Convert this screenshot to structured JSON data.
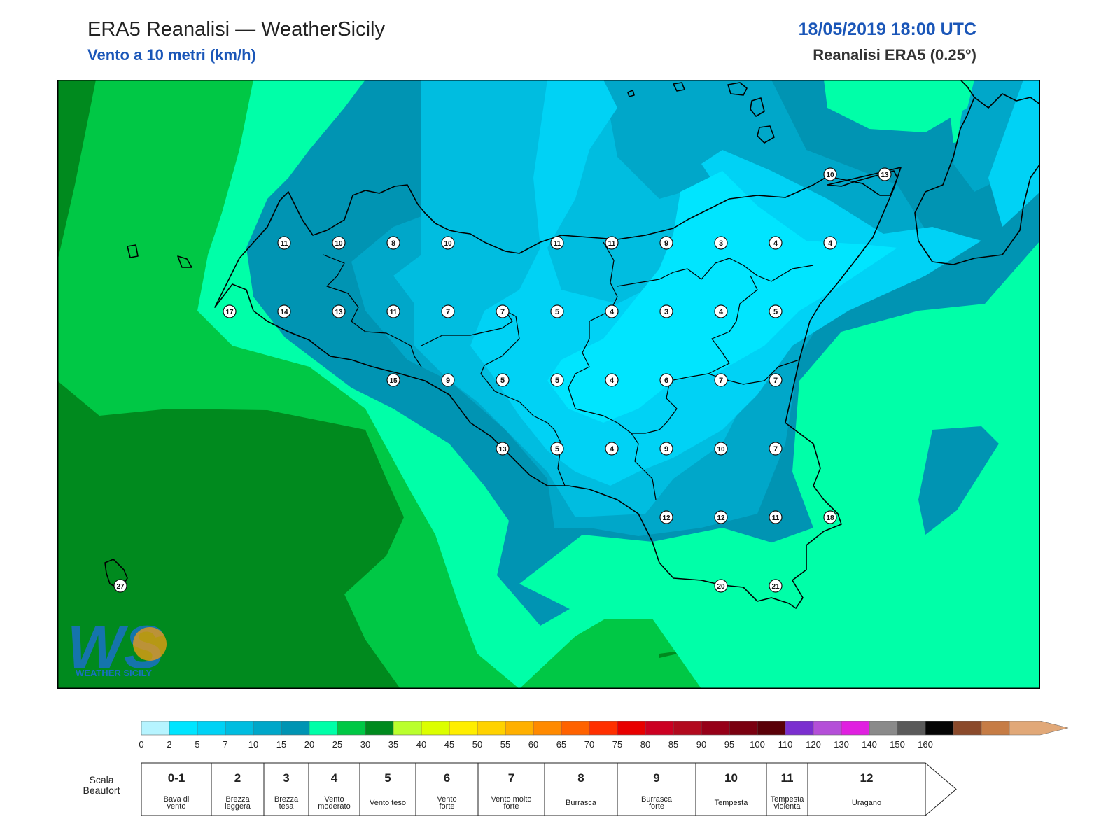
{
  "header": {
    "title": "ERA5 Reanalisi — WeatherSicily",
    "subtitle": "Vento a 10 metri (km/h)",
    "datetime": "18/05/2019 18:00 UTC",
    "dataset": "Reanalisi ERA5 (0.25°)"
  },
  "map": {
    "wind_stations": [
      {
        "value": "11",
        "row": 1,
        "col": 4
      },
      {
        "value": "10",
        "row": 1,
        "col": 5
      },
      {
        "value": "8",
        "row": 1,
        "col": 6
      },
      {
        "value": "10",
        "row": 1,
        "col": 7
      },
      {
        "value": "11",
        "row": 1,
        "col": 9
      },
      {
        "value": "11",
        "row": 1,
        "col": 10
      },
      {
        "value": "9",
        "row": 1,
        "col": 11
      },
      {
        "value": "3",
        "row": 1,
        "col": 12
      },
      {
        "value": "4",
        "row": 1,
        "col": 13
      },
      {
        "value": "4",
        "row": 1,
        "col": 14
      },
      {
        "value": "10",
        "row": 0,
        "col": 14
      },
      {
        "value": "13",
        "row": 0,
        "col": 15
      },
      {
        "value": "17",
        "row": 2,
        "col": 3
      },
      {
        "value": "14",
        "row": 2,
        "col": 4
      },
      {
        "value": "13",
        "row": 2,
        "col": 5
      },
      {
        "value": "11",
        "row": 2,
        "col": 6
      },
      {
        "value": "7",
        "row": 2,
        "col": 7
      },
      {
        "value": "7",
        "row": 2,
        "col": 8
      },
      {
        "value": "5",
        "row": 2,
        "col": 9
      },
      {
        "value": "4",
        "row": 2,
        "col": 10
      },
      {
        "value": "3",
        "row": 2,
        "col": 11
      },
      {
        "value": "4",
        "row": 2,
        "col": 12
      },
      {
        "value": "5",
        "row": 2,
        "col": 13
      },
      {
        "value": "15",
        "row": 3,
        "col": 6
      },
      {
        "value": "9",
        "row": 3,
        "col": 7
      },
      {
        "value": "5",
        "row": 3,
        "col": 8
      },
      {
        "value": "5",
        "row": 3,
        "col": 9
      },
      {
        "value": "4",
        "row": 3,
        "col": 10
      },
      {
        "value": "6",
        "row": 3,
        "col": 11
      },
      {
        "value": "7",
        "row": 3,
        "col": 12
      },
      {
        "value": "7",
        "row": 3,
        "col": 13
      },
      {
        "value": "13",
        "row": 4,
        "col": 8
      },
      {
        "value": "5",
        "row": 4,
        "col": 9
      },
      {
        "value": "4",
        "row": 4,
        "col": 10
      },
      {
        "value": "9",
        "row": 4,
        "col": 11
      },
      {
        "value": "10",
        "row": 4,
        "col": 12
      },
      {
        "value": "7",
        "row": 4,
        "col": 13
      },
      {
        "value": "12",
        "row": 5,
        "col": 11
      },
      {
        "value": "12",
        "row": 5,
        "col": 12
      },
      {
        "value": "11",
        "row": 5,
        "col": 13
      },
      {
        "value": "18",
        "row": 5,
        "col": 14
      },
      {
        "value": "20",
        "row": 6,
        "col": 12
      },
      {
        "value": "21",
        "row": 6,
        "col": 13
      },
      {
        "value": "27",
        "row": 6,
        "col": 1
      }
    ],
    "logo_text": "WEATHER SICILY",
    "logo_mark": "WS"
  },
  "legend": {
    "colorbar": [
      {
        "color": "#b6f4ff"
      },
      {
        "color": "#00e5ff"
      },
      {
        "color": "#00d2f5"
      },
      {
        "color": "#00bde0"
      },
      {
        "color": "#00a7c9"
      },
      {
        "color": "#0094b3"
      },
      {
        "color": "#00ffa8"
      },
      {
        "color": "#00c845"
      },
      {
        "color": "#008a1e"
      },
      {
        "color": "#baff2d"
      },
      {
        "color": "#dcff00"
      },
      {
        "color": "#ffee00"
      },
      {
        "color": "#ffd200"
      },
      {
        "color": "#ffb000"
      },
      {
        "color": "#ff8a00"
      },
      {
        "color": "#ff6200"
      },
      {
        "color": "#ff3000"
      },
      {
        "color": "#e80000"
      },
      {
        "color": "#cc0022"
      },
      {
        "color": "#b20a1e"
      },
      {
        "color": "#960018"
      },
      {
        "color": "#7a0010"
      },
      {
        "color": "#5a0008"
      },
      {
        "color": "#7b2fcf"
      },
      {
        "color": "#b44fd8"
      },
      {
        "color": "#e020e0"
      },
      {
        "color": "#8a8a8a"
      },
      {
        "color": "#5a5a5a"
      },
      {
        "color": "#050505"
      },
      {
        "color": "#8b4a2b"
      },
      {
        "color": "#c67c45"
      },
      {
        "color": "#e1a878"
      }
    ],
    "ticks": [
      "0",
      "2",
      "5",
      "7",
      "10",
      "15",
      "20",
      "25",
      "30",
      "35",
      "40",
      "45",
      "50",
      "55",
      "60",
      "65",
      "70",
      "75",
      "80",
      "85",
      "90",
      "95",
      "100",
      "110",
      "120",
      "130",
      "140",
      "150",
      "160"
    ],
    "beaufort_label": [
      "Scala",
      "Beaufort"
    ],
    "beaufort": [
      {
        "num": "0-1",
        "name": [
          "Bava di",
          "vento"
        ]
      },
      {
        "num": "2",
        "name": [
          "Brezza",
          "leggera"
        ]
      },
      {
        "num": "3",
        "name": [
          "Brezza",
          "tesa"
        ]
      },
      {
        "num": "4",
        "name": [
          "Vento",
          "moderato"
        ]
      },
      {
        "num": "5",
        "name": [
          "Vento teso"
        ]
      },
      {
        "num": "6",
        "name": [
          "Vento",
          "forte"
        ]
      },
      {
        "num": "7",
        "name": [
          "Vento molto",
          "forte"
        ]
      },
      {
        "num": "8",
        "name": [
          "Burrasca"
        ]
      },
      {
        "num": "9",
        "name": [
          "Burrasca",
          "forte"
        ]
      },
      {
        "num": "10",
        "name": [
          "Tempesta"
        ]
      },
      {
        "num": "11",
        "name": [
          "Tempesta",
          "violenta"
        ]
      },
      {
        "num": "12",
        "name": [
          "Uragano"
        ]
      }
    ]
  }
}
